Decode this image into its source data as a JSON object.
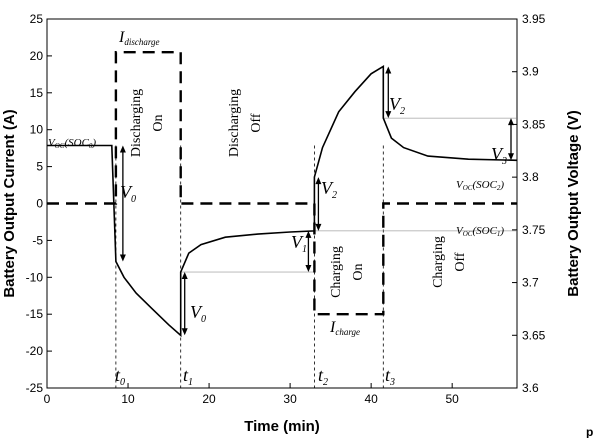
{
  "chart_data": {
    "type": "line",
    "xlabel": "Time (min)",
    "ylabel_left": "Battery Output Current (A)",
    "ylabel_right": "Battery Output Voltage (V)",
    "xlim": [
      0,
      58
    ],
    "ylim_left": [
      -25,
      25
    ],
    "ylim_right": [
      3.6,
      3.95
    ],
    "x_ticks": [
      0,
      10,
      20,
      30,
      40,
      50
    ],
    "y_left_ticks": [
      -25,
      -20,
      -15,
      -10,
      -5,
      0,
      5,
      10,
      15,
      20,
      25
    ],
    "y_right_ticks": [
      3.6,
      3.65,
      3.7,
      3.75,
      3.8,
      3.85,
      3.9,
      3.95
    ],
    "grid": false,
    "series": [
      {
        "axis": "right",
        "style": "solid",
        "x": [
          0,
          8,
          8.5,
          9.5,
          11,
          13,
          15,
          16.5,
          16.5,
          17.5,
          19,
          22,
          26,
          30,
          33,
          33,
          34,
          36,
          38,
          40,
          41.5,
          41.5,
          42.5,
          44,
          47,
          52,
          58
        ],
        "y": [
          3.83,
          3.83,
          3.72,
          3.705,
          3.69,
          3.675,
          3.66,
          3.65,
          3.71,
          3.728,
          3.736,
          3.743,
          3.746,
          3.748,
          3.749,
          3.8,
          3.828,
          3.862,
          3.881,
          3.898,
          3.905,
          3.856,
          3.837,
          3.828,
          3.82,
          3.817,
          3.816
        ]
      },
      {
        "axis": "left",
        "style": "dashed",
        "x": [
          0,
          8.5,
          8.5,
          16.5,
          16.5,
          33,
          33,
          41.5,
          41.5,
          58
        ],
        "y": [
          0,
          0,
          20.5,
          20.5,
          0,
          0,
          -15,
          -15,
          0,
          0
        ]
      }
    ],
    "time_markers": [
      {
        "x": 8.5,
        "label": "t"
      },
      {
        "x": 16.5,
        "label": "t"
      },
      {
        "x": 33,
        "label": "t"
      },
      {
        "x": 41.5,
        "label": "t"
      }
    ],
    "annotations": {
      "voc_soc0": {
        "main": "V",
        "sub1": "OC",
        "mid": "(SOC",
        "sub2": "0",
        "end": ")"
      },
      "voc_soc1": {
        "main": "V",
        "sub1": "OC",
        "mid": "(SOC",
        "sub2": "1",
        "end": ")"
      },
      "voc_soc2": {
        "main": "V",
        "sub1": "OC",
        "mid": "(SOC",
        "sub2": "2",
        "end": ")"
      },
      "i_discharge": {
        "main": "I",
        "sub": "discharge"
      },
      "i_charge": {
        "main": "I",
        "sub": "charge"
      },
      "discharging_on": [
        "Discharging",
        "On"
      ],
      "discharging_off": [
        "Discharging",
        "Off"
      ],
      "charging_on": [
        "Charging",
        "On"
      ],
      "charging_off": [
        "Charging",
        "Off"
      ],
      "v0": {
        "main": "V",
        "sub": "0"
      },
      "v1": {
        "main": "V",
        "sub": "1"
      },
      "v2": {
        "main": "V",
        "sub": "2"
      },
      "v3": {
        "main": "V",
        "sub": "3"
      },
      "t0": {
        "main": "t",
        "sub": "0"
      },
      "t1": {
        "main": "t",
        "sub": "1"
      },
      "t2": {
        "main": "t",
        "sub": "2"
      },
      "t3": {
        "main": "t",
        "sub": "3"
      },
      "corner_letter": "p"
    }
  }
}
